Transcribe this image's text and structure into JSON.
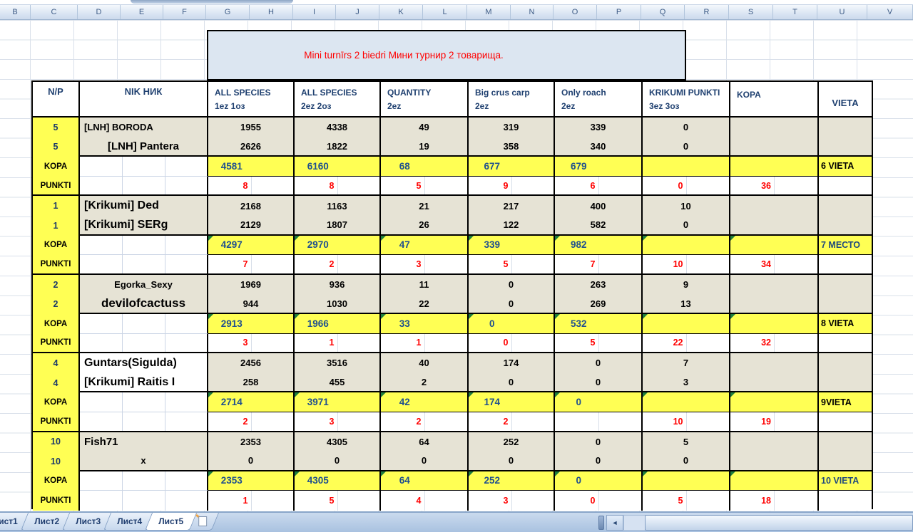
{
  "spreadsheet": {
    "column_letters": [
      "B",
      "C",
      "D",
      "E",
      "F",
      "G",
      "H",
      "I",
      "J",
      "K",
      "L",
      "M",
      "N",
      "O",
      "P",
      "Q",
      "R",
      "S",
      "T",
      "U",
      "V"
    ],
    "title": "Mini turnīrs 2 biedri  Мини турнир 2 товарища.",
    "header": {
      "np": "N/P",
      "nik": "NIK НИК",
      "vieta": "VIETA",
      "cols": [
        {
          "line1": "ALL SPECIES",
          "line2": "1ez  1оз"
        },
        {
          "line1": "ALL SPECIES",
          "line2": "2ez 2оз"
        },
        {
          "line1": "QUANTITY",
          "line2": "2ez"
        },
        {
          "line1": "Big crus carp",
          "line2": "2ez"
        },
        {
          "line1": "Only  roach",
          "line2": "2ez"
        },
        {
          "line1": "KRIKUMI PUNKTI",
          "line2": "3ez 3оз"
        },
        {
          "line1": "KOPA",
          "line2": ""
        }
      ]
    },
    "row_labels": {
      "kopa": "KOPA",
      "punkti": "PUNKTI"
    },
    "teams": [
      {
        "members": [
          {
            "np": "5",
            "name": "[LNH] BORODA",
            "size": "sm",
            "align": "left",
            "values": [
              "1955",
              "4338",
              "49",
              "319",
              "339",
              "0"
            ]
          },
          {
            "np": "5",
            "name": "[LNH] Pantera",
            "size": "md",
            "align": "center",
            "values": [
              "2626",
              "1822",
              "19",
              "358",
              "340",
              "0"
            ]
          }
        ],
        "kopa": [
          "4581",
          "6160",
          "68",
          "677",
          "679",
          "",
          ""
        ],
        "kopa_vieta": "6 VIETA",
        "vieta_color": "#000000",
        "punkti": [
          "8",
          "8",
          "5",
          "9",
          "6",
          "0",
          "36"
        ],
        "markers": false,
        "name_bg": "beige"
      },
      {
        "members": [
          {
            "np": "1",
            "name": "[Krikumi] Ded",
            "size": "lg",
            "align": "left",
            "values": [
              "2168",
              "1163",
              "21",
              "217",
              "400",
              "10"
            ]
          },
          {
            "np": "1",
            "name": "[Krikumi] SERg",
            "size": "lg",
            "align": "left",
            "values": [
              "2129",
              "1807",
              "26",
              "122",
              "582",
              "0"
            ]
          }
        ],
        "kopa": [
          "4297",
          "2970",
          "47",
          "339",
          "982",
          "",
          ""
        ],
        "kopa_vieta": "7 МЕСТО",
        "vieta_color": "#1f497d",
        "punkti": [
          "7",
          "2",
          "3",
          "5",
          "7",
          "10",
          "34"
        ],
        "markers": true,
        "name_bg": "beige"
      },
      {
        "members": [
          {
            "np": "2",
            "name": "Egorka_Sexy",
            "size": "sm",
            "align": "center",
            "values": [
              "1969",
              "936",
              "11",
              "0",
              "263",
              "9"
            ]
          },
          {
            "np": "2",
            "name": "devilofcactuss",
            "size": "xl",
            "align": "center",
            "values": [
              "944",
              "1030",
              "22",
              "0",
              "269",
              "13"
            ]
          }
        ],
        "kopa": [
          "2913",
          "1966",
          "33",
          "0",
          "532",
          "",
          ""
        ],
        "kopa_vieta": "8 VIETA",
        "vieta_color": "#000000",
        "punkti": [
          "3",
          "1",
          "1",
          "0",
          "5",
          "22",
          "32"
        ],
        "markers": true,
        "name_bg": "beige"
      },
      {
        "members": [
          {
            "np": "4",
            "name": "Guntars(Sigulda)",
            "size": "lg",
            "align": "left",
            "values": [
              "2456",
              "3516",
              "40",
              "174",
              "0",
              "7"
            ]
          },
          {
            "np": "4",
            "name": "[Krikumi] Raitis I",
            "size": "lg",
            "align": "left",
            "values": [
              "258",
              "455",
              "2",
              "0",
              "0",
              "3"
            ]
          }
        ],
        "kopa": [
          "2714",
          "3971",
          "42",
          "174",
          "0",
          "",
          ""
        ],
        "kopa_vieta": "9VIETA",
        "vieta_color": "#000000",
        "punkti": [
          "2",
          "3",
          "2",
          "2",
          "",
          "10",
          "19"
        ],
        "markers": true,
        "name_bg": "white"
      },
      {
        "members": [
          {
            "np": "10",
            "name": "Fish71",
            "size": "md",
            "align": "left",
            "values": [
              "2353",
              "4305",
              "64",
              "252",
              "0",
              "5"
            ]
          },
          {
            "np": "10",
            "name": "x",
            "size": "sm",
            "align": "center",
            "values": [
              "0",
              "0",
              "0",
              "0",
              "0",
              "0"
            ]
          }
        ],
        "kopa": [
          "2353",
          "4305",
          "64",
          "252",
          "0",
          "",
          ""
        ],
        "kopa_vieta": "10 VIETA",
        "vieta_color": "#1f497d",
        "punkti": [
          "1",
          "5",
          "4",
          "3",
          "0",
          "5",
          "18"
        ],
        "markers": true,
        "name_bg": "beige"
      }
    ]
  },
  "sheet_tabs": {
    "tabs": [
      {
        "label": "ист1",
        "active": false
      },
      {
        "label": "Лист2",
        "active": false
      },
      {
        "label": "Лист3",
        "active": false
      },
      {
        "label": "Лист4",
        "active": false
      },
      {
        "label": "Лист5",
        "active": true
      }
    ],
    "scroll_left_glyph": "◄"
  },
  "colors": {
    "yellow": "#ffff54",
    "beige": "#e6e3d5",
    "header_navy": "#1f4070",
    "kopa_blue": "#20508e",
    "red": "#ff0000",
    "title_bg": "#dce6f1",
    "grid": "#d9e0ea"
  }
}
